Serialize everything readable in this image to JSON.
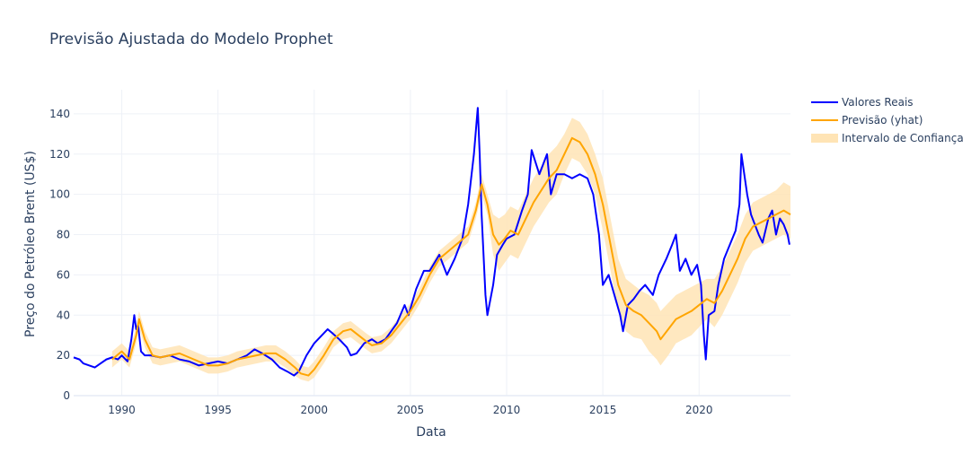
{
  "chart_data": {
    "type": "line",
    "title": "Previsão Ajustada do Modelo Prophet",
    "xlabel": "Data",
    "ylabel": "Preço do Petróleo Brent (US$)",
    "x_range": [
      1987.5,
      2024.75
    ],
    "ylim": [
      0,
      152
    ],
    "x_ticks": [
      1990,
      1995,
      2000,
      2005,
      2010,
      2015,
      2020
    ],
    "y_ticks": [
      0,
      20,
      40,
      60,
      80,
      100,
      120,
      140
    ],
    "grid": true,
    "legend_position": "top-right",
    "colors": {
      "actual": "#0000ff",
      "forecast": "#ffa500",
      "interval": "#ffe4b5",
      "grid": "#eef1f7",
      "axis": "#e5ecf6"
    },
    "series": [
      {
        "name": "Valores Reais",
        "x": [
          1987.5,
          1987.8,
          1988.0,
          1988.3,
          1988.6,
          1988.9,
          1989.2,
          1989.5,
          1989.8,
          1990.0,
          1990.3,
          1990.5,
          1990.65,
          1990.75,
          1990.85,
          1991.0,
          1991.2,
          1991.5,
          1992.0,
          1992.5,
          1993.0,
          1993.5,
          1994.0,
          1994.5,
          1995.0,
          1995.5,
          1996.0,
          1996.5,
          1996.9,
          1997.3,
          1997.8,
          1998.2,
          1998.6,
          1998.95,
          1999.2,
          1999.6,
          2000.0,
          2000.4,
          2000.7,
          2000.95,
          2001.3,
          2001.7,
          2001.9,
          2002.2,
          2002.6,
          2003.0,
          2003.3,
          2003.7,
          2004.0,
          2004.3,
          2004.7,
          2004.9,
          2005.3,
          2005.7,
          2006.0,
          2006.5,
          2006.9,
          2007.3,
          2007.7,
          2008.0,
          2008.3,
          2008.5,
          2008.6,
          2008.7,
          2008.9,
          2009.0,
          2009.1,
          2009.3,
          2009.5,
          2009.8,
          2010.0,
          2010.4,
          2010.8,
          2011.1,
          2011.3,
          2011.7,
          2012.1,
          2012.3,
          2012.6,
          2013.0,
          2013.4,
          2013.8,
          2014.2,
          2014.5,
          2014.8,
          2015.0,
          2015.3,
          2015.6,
          2015.9,
          2016.05,
          2016.3,
          2016.6,
          2016.9,
          2017.2,
          2017.6,
          2017.9,
          2018.3,
          2018.6,
          2018.8,
          2019.0,
          2019.3,
          2019.6,
          2019.9,
          2020.1,
          2020.25,
          2020.35,
          2020.5,
          2020.8,
          2021.0,
          2021.3,
          2021.6,
          2021.9,
          2022.1,
          2022.2,
          2022.35,
          2022.5,
          2022.7,
          2022.9,
          2023.1,
          2023.3,
          2023.6,
          2023.8,
          2024.0,
          2024.2,
          2024.4,
          2024.6,
          2024.7
        ],
        "values": [
          19,
          18,
          16,
          15,
          14,
          16,
          18,
          19,
          18,
          20,
          17,
          28,
          40,
          33,
          35,
          22,
          20,
          20,
          19,
          20,
          18,
          17,
          15,
          16,
          17,
          16,
          18,
          20,
          23,
          21,
          18,
          14,
          12,
          10,
          12,
          20,
          26,
          30,
          33,
          31,
          28,
          24,
          20,
          21,
          26,
          28,
          26,
          28,
          32,
          36,
          45,
          40,
          53,
          62,
          62,
          70,
          60,
          68,
          78,
          95,
          120,
          143,
          120,
          90,
          50,
          40,
          45,
          55,
          70,
          75,
          78,
          80,
          92,
          100,
          122,
          110,
          120,
          100,
          110,
          110,
          108,
          110,
          108,
          100,
          80,
          55,
          60,
          50,
          40,
          32,
          45,
          48,
          52,
          55,
          50,
          60,
          68,
          75,
          80,
          62,
          68,
          60,
          65,
          55,
          30,
          18,
          40,
          42,
          55,
          68,
          75,
          82,
          95,
          120,
          110,
          100,
          90,
          85,
          80,
          76,
          88,
          92,
          80,
          88,
          85,
          80,
          75
        ]
      },
      {
        "name": "Previsão (yhat)",
        "x": [
          1989.5,
          1990.0,
          1990.4,
          1990.75,
          1990.9,
          1991.2,
          1991.6,
          1992.0,
          1992.5,
          1993.0,
          1993.5,
          1994.0,
          1994.5,
          1995.0,
          1995.5,
          1996.0,
          1996.5,
          1997.0,
          1997.5,
          1998.0,
          1998.5,
          1999.0,
          1999.3,
          1999.7,
          2000.0,
          2000.5,
          2001.0,
          2001.5,
          2001.9,
          2002.3,
          2002.7,
          2003.0,
          2003.5,
          2004.0,
          2004.5,
          2005.0,
          2005.5,
          2006.0,
          2006.5,
          2007.0,
          2007.5,
          2008.0,
          2008.4,
          2008.7,
          2009.0,
          2009.3,
          2009.6,
          2009.9,
          2010.2,
          2010.6,
          2011.0,
          2011.4,
          2011.8,
          2012.2,
          2012.6,
          2013.0,
          2013.4,
          2013.8,
          2014.2,
          2014.6,
          2015.0,
          2015.4,
          2015.8,
          2016.2,
          2016.6,
          2017.0,
          2017.4,
          2017.8,
          2018.0,
          2018.4,
          2018.8,
          2019.2,
          2019.6,
          2020.0,
          2020.4,
          2020.8,
          2021.2,
          2021.6,
          2022.0,
          2022.4,
          2022.8,
          2023.2,
          2023.6,
          2024.0,
          2024.4,
          2024.75
        ],
        "values": [
          18,
          22,
          18,
          30,
          38,
          28,
          20,
          19,
          20,
          21,
          19,
          17,
          15,
          15,
          16,
          18,
          19,
          20,
          21,
          21,
          18,
          14,
          11,
          10,
          13,
          20,
          28,
          32,
          33,
          30,
          27,
          25,
          26,
          30,
          36,
          42,
          50,
          60,
          68,
          72,
          76,
          80,
          92,
          105,
          95,
          80,
          75,
          78,
          82,
          80,
          88,
          96,
          102,
          108,
          112,
          120,
          128,
          126,
          120,
          110,
          95,
          75,
          55,
          45,
          42,
          40,
          36,
          32,
          28,
          33,
          38,
          40,
          42,
          45,
          48,
          46,
          52,
          60,
          68,
          78,
          84,
          86,
          88,
          90,
          92,
          90
        ]
      },
      {
        "name": "Intervalo de Confiança",
        "x": [
          1989.5,
          1990.0,
          1990.4,
          1990.75,
          1990.9,
          1991.2,
          1991.6,
          1992.0,
          1992.5,
          1993.0,
          1993.5,
          1994.0,
          1994.5,
          1995.0,
          1995.5,
          1996.0,
          1996.5,
          1997.0,
          1997.5,
          1998.0,
          1998.5,
          1999.0,
          1999.3,
          1999.7,
          2000.0,
          2000.5,
          2001.0,
          2001.5,
          2001.9,
          2002.3,
          2002.7,
          2003.0,
          2003.5,
          2004.0,
          2004.5,
          2005.0,
          2005.5,
          2006.0,
          2006.5,
          2007.0,
          2007.5,
          2008.0,
          2008.4,
          2008.7,
          2009.0,
          2009.3,
          2009.6,
          2009.9,
          2010.2,
          2010.6,
          2011.0,
          2011.4,
          2011.8,
          2012.2,
          2012.6,
          2013.0,
          2013.4,
          2013.8,
          2014.2,
          2014.6,
          2015.0,
          2015.4,
          2015.8,
          2016.2,
          2016.6,
          2017.0,
          2017.4,
          2017.8,
          2018.0,
          2018.4,
          2018.8,
          2019.2,
          2019.6,
          2020.0,
          2020.4,
          2020.8,
          2021.2,
          2021.6,
          2022.0,
          2022.4,
          2022.8,
          2023.2,
          2023.6,
          2024.0,
          2024.4,
          2024.75
        ],
        "upper": [
          22,
          26,
          22,
          34,
          42,
          32,
          24,
          23,
          24,
          25,
          23,
          21,
          19,
          19,
          20,
          22,
          23,
          24,
          25,
          25,
          22,
          18,
          15,
          14,
          17,
          24,
          32,
          36,
          37,
          34,
          31,
          29,
          30,
          34,
          40,
          46,
          54,
          64,
          72,
          76,
          80,
          84,
          96,
          110,
          100,
          90,
          88,
          90,
          94,
          92,
          100,
          108,
          114,
          120,
          124,
          130,
          138,
          136,
          130,
          120,
          108,
          88,
          68,
          58,
          55,
          52,
          50,
          46,
          42,
          46,
          50,
          52,
          54,
          56,
          58,
          58,
          64,
          72,
          80,
          90,
          96,
          98,
          100,
          102,
          106,
          104
        ],
        "lower": [
          14,
          18,
          14,
          26,
          34,
          24,
          16,
          15,
          16,
          17,
          15,
          13,
          11,
          11,
          12,
          14,
          15,
          16,
          17,
          17,
          14,
          10,
          8,
          7,
          9,
          16,
          24,
          28,
          29,
          26,
          23,
          21,
          22,
          26,
          32,
          38,
          46,
          56,
          64,
          68,
          72,
          76,
          88,
          100,
          90,
          70,
          62,
          66,
          70,
          68,
          76,
          84,
          90,
          96,
          100,
          110,
          118,
          116,
          110,
          100,
          82,
          62,
          42,
          32,
          29,
          28,
          22,
          18,
          15,
          20,
          26,
          28,
          30,
          34,
          38,
          34,
          40,
          48,
          56,
          66,
          72,
          74,
          76,
          78,
          80,
          78
        ]
      }
    ]
  }
}
